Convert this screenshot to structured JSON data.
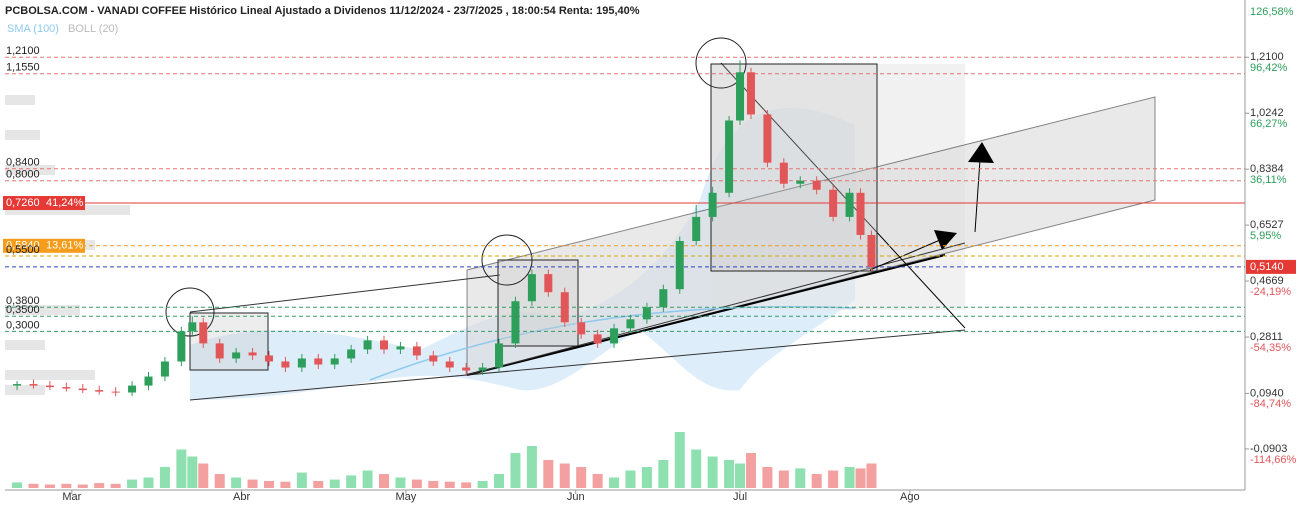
{
  "chart_data": {
    "type": "candlestick",
    "title": "PCBOLSA.COM - VANADI COFFEE Histórico Lineal Ajustado a Dividenos 11/12/2024 - 23/7/2025 , 18:00:54 Renta: 195,40%",
    "indicators": [
      {
        "name": "SMA (100)",
        "color": "#8ec9ee"
      },
      {
        "name": "BOLL (20)",
        "color": "#bbbbbb"
      }
    ],
    "xlim": [
      47.8,
      274.2
    ],
    "xticks": [
      {
        "value": 60,
        "label": "Mar"
      },
      {
        "value": 91,
        "label": "Abr"
      },
      {
        "value": 121,
        "label": "May"
      },
      {
        "value": 152,
        "label": "Jun"
      },
      {
        "value": 182,
        "label": "Jul"
      },
      {
        "value": 213,
        "label": "Ago"
      }
    ],
    "ylim": [
      -0.22,
      1.4
    ],
    "yticks": [
      {
        "value": 1.21,
        "label": "1,2100"
      },
      {
        "value": 1.0242,
        "label": "1,0242"
      },
      {
        "value": 0.8384,
        "label": "0,8384"
      },
      {
        "value": 0.6527,
        "label": "0,6527"
      },
      {
        "value": 0.4669,
        "label": "0,4669"
      },
      {
        "value": 0.2811,
        "label": "0,2811"
      },
      {
        "value": 0.094,
        "label": "0,0940"
      },
      {
        "value": -0.0903,
        "label": "-0,0903"
      }
    ],
    "y2lim": [
      -129.8,
      133.0
    ],
    "y2ticks": [
      {
        "value": 126.58,
        "label": "126,58%"
      },
      {
        "value": 96.42,
        "label": "96,42%"
      },
      {
        "value": 66.27,
        "label": "66,27%"
      },
      {
        "value": 36.11,
        "label": "36,11%"
      },
      {
        "value": 5.95,
        "label": "5,95%"
      },
      {
        "value": -24.19,
        "label": "-24,19%"
      },
      {
        "value": -54.35,
        "label": "-54,35%"
      },
      {
        "value": -84.74,
        "label": "-84,74%"
      },
      {
        "value": -114.66,
        "label": "-114,66%"
      }
    ],
    "last_price": {
      "value": 0.514,
      "label": "0,5140",
      "color": "#e53935"
    },
    "levels": [
      {
        "value": 1.21,
        "label": "1,2100",
        "color": "#e57373",
        "style": "dashed"
      },
      {
        "value": 1.155,
        "label": "1,1550",
        "color": "#e57373",
        "style": "dashed"
      },
      {
        "value": 0.84,
        "label": "0,8400",
        "color": "#e57373",
        "style": "dashed"
      },
      {
        "value": 0.8,
        "label": "0,8000",
        "color": "#e57373",
        "style": "dashed"
      },
      {
        "value": 0.726,
        "label": "0,7260",
        "pct_label": "41,24%",
        "color": "#e53935",
        "style": "solid"
      },
      {
        "value": 0.584,
        "label": "0,5840",
        "pct_label": "13,61%",
        "color": "#f59c1a",
        "style": "dashed"
      },
      {
        "value": 0.55,
        "label": "0,5500",
        "color": "#d8a200",
        "style": "dashed"
      },
      {
        "value": 0.38,
        "label": "0,3800",
        "color": "#3a9a6a",
        "style": "dashed"
      },
      {
        "value": 0.35,
        "label": "0,3500",
        "color": "#3a9a6a",
        "style": "dashed"
      },
      {
        "value": 0.3,
        "label": "0,3000",
        "color": "#3a9a6a",
        "style": "dashed"
      }
    ],
    "up_color": "#2e9e5b",
    "down_color": "#e15759",
    "vol_up_color": "#8fe0b0",
    "vol_down_color": "#f3a0a0",
    "x": [
      50,
      53,
      56,
      59,
      62,
      65,
      68,
      71,
      74,
      77,
      80,
      82,
      84,
      87,
      90,
      93,
      96,
      99,
      102,
      105,
      108,
      111,
      114,
      117,
      120,
      123,
      126,
      129,
      132,
      135,
      138,
      141,
      144,
      147,
      150,
      153,
      156,
      159,
      162,
      165,
      168,
      171,
      174,
      177,
      180,
      182,
      184,
      187,
      190,
      193,
      196,
      199,
      202,
      204,
      206
    ],
    "open": [
      0.12,
      0.125,
      0.12,
      0.115,
      0.11,
      0.105,
      0.1,
      0.097,
      0.12,
      0.15,
      0.2,
      0.3,
      0.33,
      0.26,
      0.21,
      0.23,
      0.22,
      0.2,
      0.18,
      0.21,
      0.19,
      0.21,
      0.24,
      0.27,
      0.24,
      0.25,
      0.22,
      0.2,
      0.18,
      0.17,
      0.18,
      0.26,
      0.4,
      0.49,
      0.43,
      0.33,
      0.29,
      0.26,
      0.31,
      0.34,
      0.38,
      0.44,
      0.6,
      0.68,
      0.76,
      1.0,
      1.16,
      1.02,
      0.86,
      0.79,
      0.8,
      0.77,
      0.68,
      0.76,
      0.62
    ],
    "close": [
      0.125,
      0.12,
      0.115,
      0.11,
      0.105,
      0.1,
      0.097,
      0.12,
      0.15,
      0.2,
      0.3,
      0.33,
      0.26,
      0.21,
      0.23,
      0.22,
      0.2,
      0.18,
      0.21,
      0.19,
      0.21,
      0.24,
      0.27,
      0.24,
      0.25,
      0.22,
      0.2,
      0.18,
      0.17,
      0.18,
      0.26,
      0.4,
      0.49,
      0.43,
      0.33,
      0.29,
      0.26,
      0.31,
      0.34,
      0.38,
      0.44,
      0.6,
      0.68,
      0.76,
      1.0,
      1.16,
      1.02,
      0.86,
      0.79,
      0.8,
      0.77,
      0.68,
      0.76,
      0.62,
      0.514
    ],
    "high": [
      0.135,
      0.14,
      0.135,
      0.13,
      0.125,
      0.12,
      0.115,
      0.135,
      0.165,
      0.215,
      0.315,
      0.35,
      0.345,
      0.275,
      0.245,
      0.245,
      0.235,
      0.215,
      0.225,
      0.225,
      0.225,
      0.255,
      0.285,
      0.285,
      0.265,
      0.265,
      0.235,
      0.215,
      0.195,
      0.195,
      0.275,
      0.415,
      0.505,
      0.505,
      0.445,
      0.345,
      0.305,
      0.325,
      0.355,
      0.395,
      0.455,
      0.615,
      0.72,
      0.78,
      1.015,
      1.2,
      1.175,
      1.035,
      0.875,
      0.815,
      0.815,
      0.785,
      0.775,
      0.775,
      0.635
    ],
    "low": [
      0.105,
      0.11,
      0.105,
      0.1,
      0.095,
      0.09,
      0.085,
      0.085,
      0.105,
      0.135,
      0.185,
      0.285,
      0.245,
      0.195,
      0.195,
      0.205,
      0.185,
      0.165,
      0.165,
      0.175,
      0.175,
      0.195,
      0.225,
      0.225,
      0.225,
      0.205,
      0.185,
      0.165,
      0.155,
      0.155,
      0.165,
      0.245,
      0.385,
      0.415,
      0.315,
      0.275,
      0.245,
      0.245,
      0.295,
      0.325,
      0.365,
      0.425,
      0.585,
      0.665,
      0.745,
      0.985,
      1.005,
      0.845,
      0.775,
      0.775,
      0.755,
      0.665,
      0.665,
      0.605,
      0.5
    ],
    "vlim": [
      0,
      100
    ],
    "volume": [
      8,
      6,
      5,
      6,
      5,
      7,
      6,
      12,
      15,
      30,
      55,
      45,
      35,
      20,
      15,
      12,
      10,
      9,
      22,
      10,
      12,
      18,
      25,
      20,
      15,
      12,
      10,
      9,
      8,
      10,
      20,
      50,
      60,
      40,
      35,
      30,
      20,
      15,
      25,
      30,
      40,
      80,
      55,
      45,
      40,
      35,
      50,
      30,
      25,
      28,
      20,
      25,
      30,
      28,
      35
    ]
  }
}
